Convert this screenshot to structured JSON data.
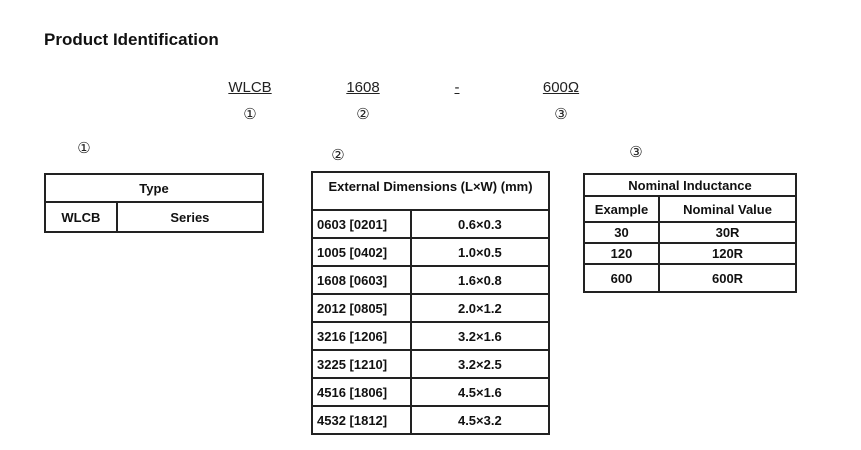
{
  "title": "Product Identification",
  "part_code": {
    "segments": [
      "WLCB",
      "1608",
      "-",
      "600Ω"
    ],
    "markers": [
      "①",
      "②",
      "③"
    ]
  },
  "sections": [
    {
      "marker": "①",
      "table": {
        "header": "Type",
        "rows": [
          [
            "WLCB",
            "Series"
          ]
        ]
      }
    },
    {
      "marker": "②",
      "table": {
        "header": "External Dimensions (L×W) (mm)",
        "rows": [
          [
            "0603 [0201]",
            "0.6×0.3"
          ],
          [
            "1005 [0402]",
            "1.0×0.5"
          ],
          [
            "1608 [0603]",
            "1.6×0.8"
          ],
          [
            "2012 [0805]",
            "2.0×1.2"
          ],
          [
            "3216 [1206]",
            "3.2×1.6"
          ],
          [
            "3225 [1210]",
            "3.2×2.5"
          ],
          [
            "4516 [1806]",
            "4.5×1.6"
          ],
          [
            "4532 [1812]",
            "4.5×3.2"
          ]
        ]
      }
    },
    {
      "marker": "③",
      "table": {
        "header": "Nominal Inductance",
        "columns": [
          "Example",
          "Nominal Value"
        ],
        "rows": [
          [
            "30",
            "30R"
          ],
          [
            "120",
            "120R"
          ],
          [
            "600",
            "600R"
          ]
        ]
      }
    }
  ]
}
